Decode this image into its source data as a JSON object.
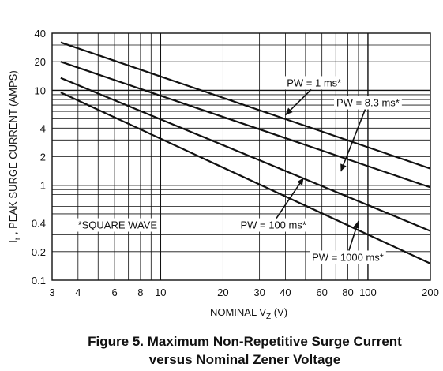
{
  "figure": {
    "caption_line1": "Figure 5. Maximum Non-Repetitive Surge Current",
    "caption_line2": "versus Nominal Zener Voltage"
  },
  "chart_data": {
    "type": "line",
    "xscale": "log",
    "yscale": "log",
    "xlim": [
      3,
      200
    ],
    "ylim": [
      0.1,
      40
    ],
    "grid": true,
    "xlabel_main": "NOMINAL V",
    "xlabel_sub": "Z",
    "xlabel_unit": " (V)",
    "ylabel_main": "I",
    "ylabel_sub": "r",
    "ylabel_rest": " , PEAK SURGE CURRENT (AMPS)",
    "xticks": [
      {
        "value": 3,
        "label": "3"
      },
      {
        "value": 4,
        "label": "4"
      },
      {
        "value": 6,
        "label": "6"
      },
      {
        "value": 8,
        "label": "8"
      },
      {
        "value": 10,
        "label": "10"
      },
      {
        "value": 20,
        "label": "20"
      },
      {
        "value": 30,
        "label": "30"
      },
      {
        "value": 40,
        "label": "40"
      },
      {
        "value": 60,
        "label": "60"
      },
      {
        "value": 80,
        "label": "80"
      },
      {
        "value": 100,
        "label": "100"
      },
      {
        "value": 200,
        "label": "200"
      }
    ],
    "yticks": [
      {
        "value": 0.1,
        "label": "0.1"
      },
      {
        "value": 0.2,
        "label": "0.2"
      },
      {
        "value": 0.4,
        "label": "0.4"
      },
      {
        "value": 1,
        "label": "1"
      },
      {
        "value": 2,
        "label": "2"
      },
      {
        "value": 4,
        "label": "4"
      },
      {
        "value": 10,
        "label": "10"
      },
      {
        "value": 20,
        "label": "20"
      },
      {
        "value": 40,
        "label": "40"
      }
    ],
    "series": [
      {
        "name": "PW = 1 ms*",
        "x": [
          3.3,
          200
        ],
        "y": [
          32,
          1.5
        ],
        "label_at": [
          55,
          11
        ],
        "arrow_to": [
          40,
          5.5
        ]
      },
      {
        "name": "PW = 8.3 ms*",
        "x": [
          3.3,
          200
        ],
        "y": [
          20,
          0.95
        ],
        "label_at": [
          100,
          6.8
        ],
        "arrow_to": [
          74,
          1.4
        ]
      },
      {
        "name": "PW = 100 ms*",
        "x": [
          3.3,
          200
        ],
        "y": [
          13.5,
          0.33
        ],
        "label_at": [
          35,
          0.35
        ],
        "arrow_to": [
          49,
          1.2
        ]
      },
      {
        "name": "PW = 1000 ms*",
        "x": [
          3.3,
          200
        ],
        "y": [
          9.5,
          0.15
        ],
        "label_at": [
          80,
          0.16
        ],
        "arrow_to": [
          90,
          0.42
        ]
      }
    ],
    "annotation": {
      "text": "*SQUARE WAVE",
      "at": [
        6.2,
        0.35
      ]
    }
  }
}
